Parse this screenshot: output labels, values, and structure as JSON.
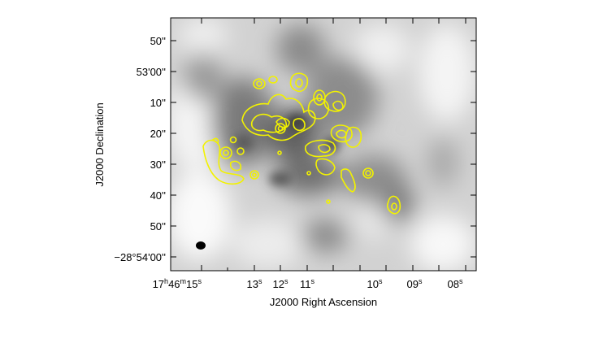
{
  "figure": {
    "xlabel": "J2000 Right Ascension",
    "ylabel": "J2000 Declination",
    "contour_color": "#f2f200",
    "map_colormap": "grayscale",
    "beam_marker": "filled-ellipse",
    "ra_ticks": [
      {
        "h": "17",
        "m": "46",
        "s": "15",
        "label": "17h46m15s"
      },
      {
        "s": "13",
        "label": "13s"
      },
      {
        "s": "12",
        "label": "12s"
      },
      {
        "s": "11",
        "label": "11s"
      },
      {
        "s": "10",
        "label": "10s"
      },
      {
        "s": "09",
        "label": "09s"
      },
      {
        "s": "08",
        "label": "08s"
      }
    ],
    "dec_ticks": [
      {
        "label": "50''",
        "deg": "",
        "min": "",
        "sec": "50''"
      },
      {
        "label": "53'00''",
        "deg": "",
        "min": "53'",
        "sec": "00''"
      },
      {
        "label": "10''",
        "deg": "",
        "min": "",
        "sec": "10''"
      },
      {
        "label": "20''",
        "deg": "",
        "min": "",
        "sec": "20''"
      },
      {
        "label": "30''",
        "deg": "",
        "min": "",
        "sec": "30''"
      },
      {
        "label": "40''",
        "deg": "",
        "min": "",
        "sec": "40''"
      },
      {
        "label": "50''",
        "deg": "",
        "min": "",
        "sec": "50''"
      },
      {
        "label": "−28°54'00''",
        "deg": "−28°",
        "min": "54'",
        "sec": "00''"
      }
    ]
  }
}
